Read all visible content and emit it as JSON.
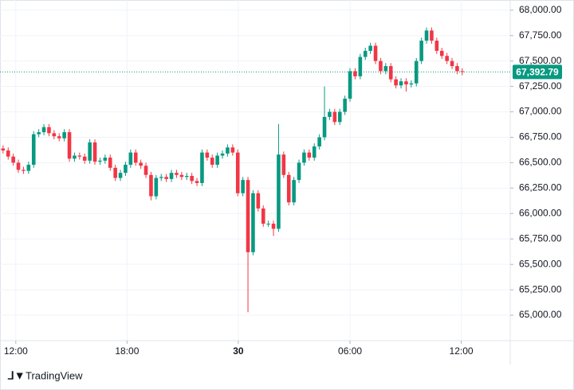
{
  "chart_data": {
    "type": "candlestick",
    "brand": "TradingView",
    "up_color": "#089981",
    "down_color": "#f23645",
    "open": [
      66640,
      66620,
      66560,
      66500,
      66430,
      66420,
      66480,
      66780,
      66800,
      66850,
      66790,
      66760,
      66740,
      66800,
      66540,
      66570,
      66560,
      66520,
      66700,
      66510,
      66520,
      66550,
      66450,
      66350,
      66400,
      66480,
      66600,
      66500,
      66470,
      66380,
      66170,
      66350,
      66360,
      66340,
      66400,
      66380,
      66360,
      66370,
      66320,
      66300,
      66600,
      66550,
      66480,
      66570,
      66590,
      66650,
      66600,
      66200,
      66330,
      65620,
      66200,
      66050,
      65900,
      65900,
      65850,
      66580,
      66380,
      66110,
      66330,
      66500,
      66600,
      66550,
      66660,
      66750,
      66950,
      67000,
      66900,
      67000,
      67130,
      67400,
      67350,
      67540,
      67600,
      67650,
      67500,
      67400,
      67450,
      67320,
      67260,
      67300,
      67270,
      67280,
      67500,
      67700,
      67800,
      67700,
      67600,
      67550,
      67500,
      67450,
      67400
    ],
    "high": [
      66670,
      66650,
      66590,
      66530,
      66460,
      66510,
      66810,
      66830,
      66880,
      66880,
      66820,
      66790,
      66830,
      66830,
      66600,
      66600,
      66590,
      66730,
      66730,
      66550,
      66580,
      66580,
      66480,
      66430,
      66510,
      66630,
      66630,
      66530,
      66500,
      66410,
      66380,
      66390,
      66390,
      66430,
      66430,
      66410,
      66400,
      66400,
      66350,
      66630,
      66630,
      66580,
      66600,
      66620,
      66680,
      66680,
      66630,
      66360,
      66360,
      66230,
      66230,
      66080,
      65930,
      65930,
      66880,
      66610,
      66410,
      66360,
      66530,
      66630,
      66630,
      66690,
      66780,
      67250,
      67030,
      67030,
      67030,
      67160,
      67430,
      67430,
      67570,
      67630,
      67680,
      67680,
      67530,
      67480,
      67480,
      67350,
      67330,
      67330,
      67310,
      67530,
      67730,
      67830,
      67830,
      67730,
      67630,
      67580,
      67530,
      67480,
      67430
    ],
    "low": [
      66590,
      66530,
      66470,
      66400,
      66390,
      66390,
      66450,
      66750,
      66770,
      66760,
      66730,
      66710,
      66710,
      66510,
      66510,
      66530,
      66490,
      66490,
      66480,
      66480,
      66490,
      66420,
      66320,
      66320,
      66370,
      66450,
      66470,
      66440,
      66350,
      66130,
      66140,
      66320,
      66310,
      66310,
      66350,
      66330,
      66330,
      66290,
      66270,
      66270,
      66520,
      66450,
      66450,
      66540,
      66560,
      66570,
      66170,
      66170,
      65030,
      65590,
      66020,
      65870,
      65870,
      65780,
      65820,
      66350,
      66080,
      66080,
      66300,
      66470,
      66520,
      66520,
      66630,
      66720,
      66920,
      66870,
      66870,
      66970,
      67100,
      67320,
      67320,
      67510,
      67570,
      67470,
      67370,
      67370,
      67290,
      67230,
      67230,
      67200,
      67240,
      67250,
      67470,
      67670,
      67670,
      67570,
      67520,
      67470,
      67420,
      67370,
      67360
    ],
    "close": [
      66620,
      66560,
      66500,
      66430,
      66420,
      66480,
      66780,
      66800,
      66850,
      66790,
      66760,
      66740,
      66800,
      66540,
      66570,
      66560,
      66520,
      66700,
      66510,
      66520,
      66550,
      66450,
      66350,
      66400,
      66480,
      66600,
      66500,
      66470,
      66380,
      66170,
      66350,
      66360,
      66340,
      66400,
      66380,
      66360,
      66370,
      66320,
      66300,
      66600,
      66550,
      66480,
      66570,
      66590,
      66650,
      66600,
      66200,
      66330,
      65620,
      66200,
      66050,
      65900,
      65900,
      65850,
      66580,
      66380,
      66110,
      66330,
      66500,
      66600,
      66550,
      66660,
      66750,
      66950,
      67000,
      66900,
      67000,
      67130,
      67400,
      67350,
      67540,
      67600,
      67650,
      67500,
      67400,
      67450,
      67320,
      67260,
      67300,
      67270,
      67280,
      67500,
      67700,
      67800,
      67700,
      67600,
      67550,
      67500,
      67450,
      67400,
      67392.79
    ],
    "last_price": {
      "value": 67392.79,
      "label": "67,392.79"
    },
    "xlim": [
      -0.6,
      99.4
    ],
    "xticks": [
      {
        "value": 2.5,
        "label": "12:00"
      },
      {
        "value": 24.3,
        "label": "18:00"
      },
      {
        "value": 46.1,
        "label": "30"
      },
      {
        "value": 68,
        "label": "06:00"
      },
      {
        "value": 89.8,
        "label": "12:00"
      }
    ],
    "ylim": [
      64750,
      68100
    ],
    "yticks": [
      {
        "value": 65000,
        "label": "65,000.00"
      },
      {
        "value": 65250,
        "label": "65,250.00"
      },
      {
        "value": 65500,
        "label": "65,500.00"
      },
      {
        "value": 65750,
        "label": "65,750.00"
      },
      {
        "value": 66000,
        "label": "66,000.00"
      },
      {
        "value": 66250,
        "label": "66,250.00"
      },
      {
        "value": 66500,
        "label": "66,500.00"
      },
      {
        "value": 66750,
        "label": "66,750.00"
      },
      {
        "value": 67000,
        "label": "67,000.00"
      },
      {
        "value": 67250,
        "label": "67,250.00"
      },
      {
        "value": 67500,
        "label": "67,500.00"
      },
      {
        "value": 67750,
        "label": "67,750.00"
      },
      {
        "value": 68000,
        "label": "68,000.00"
      }
    ],
    "grid": true
  }
}
